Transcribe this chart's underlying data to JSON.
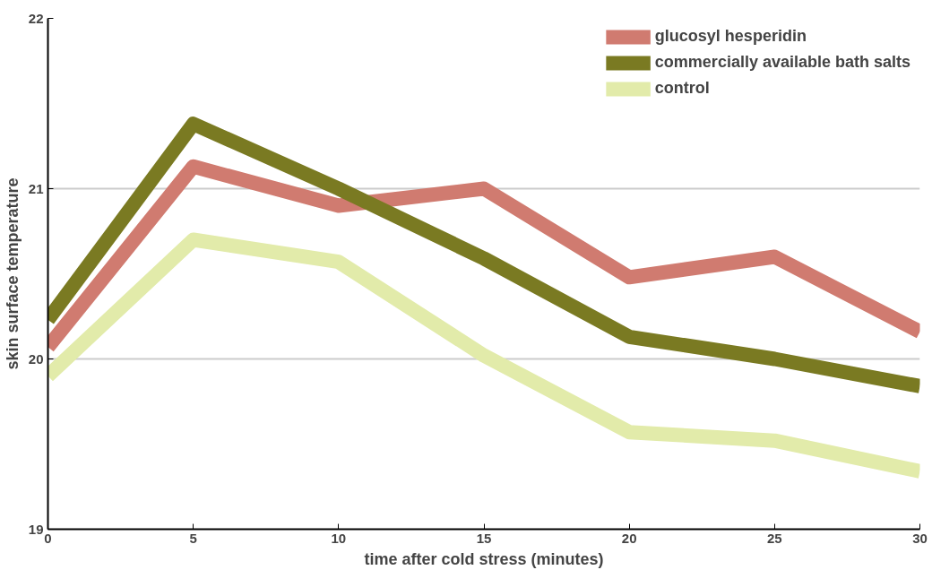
{
  "chart_data": {
    "type": "line",
    "xlabel": "time after cold stress (minutes)",
    "ylabel": "skin surface temperature",
    "x": [
      0,
      5,
      10,
      15,
      20,
      25,
      30
    ],
    "series": [
      {
        "name": "glucosyl hesperidin",
        "color": "#d07b70",
        "values": [
          20.07,
          21.13,
          20.9,
          21.0,
          20.48,
          20.6,
          20.16
        ]
      },
      {
        "name": "commercially available bath salts",
        "color": "#7a7a22",
        "values": [
          20.23,
          21.38,
          21.0,
          20.59,
          20.13,
          20.0,
          19.84
        ]
      },
      {
        "name": "control",
        "color": "#e2ebaa",
        "values": [
          19.9,
          20.7,
          20.57,
          20.02,
          19.57,
          19.52,
          19.34
        ]
      }
    ],
    "xlim": [
      0,
      30
    ],
    "ylim": [
      19,
      22
    ],
    "xticks": [
      0,
      5,
      10,
      15,
      20,
      25,
      30
    ],
    "yticks": [
      19,
      20,
      21,
      22
    ],
    "grid": "y",
    "legend": "top right",
    "marker": "none",
    "line_style": "solid"
  }
}
